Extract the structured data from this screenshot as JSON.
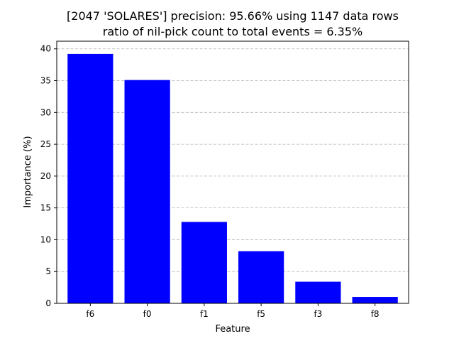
{
  "chart_data": {
    "type": "bar",
    "title": "[2047 'SOLARES'] precision: 95.66% using 1147 data rows",
    "subtitle": "ratio of nil-pick count to total events = 6.35%",
    "xlabel": "Feature",
    "ylabel": "Importance (%)",
    "categories": [
      "f6",
      "f0",
      "f1",
      "f5",
      "f3",
      "f8"
    ],
    "values": [
      39.2,
      35.1,
      12.8,
      8.2,
      3.4,
      1.0
    ],
    "ylim": [
      0,
      41.2
    ],
    "yticks": [
      0,
      5,
      10,
      15,
      20,
      25,
      30,
      35,
      40
    ],
    "grid": "y-dashed",
    "bar_color": "#0000ff"
  }
}
